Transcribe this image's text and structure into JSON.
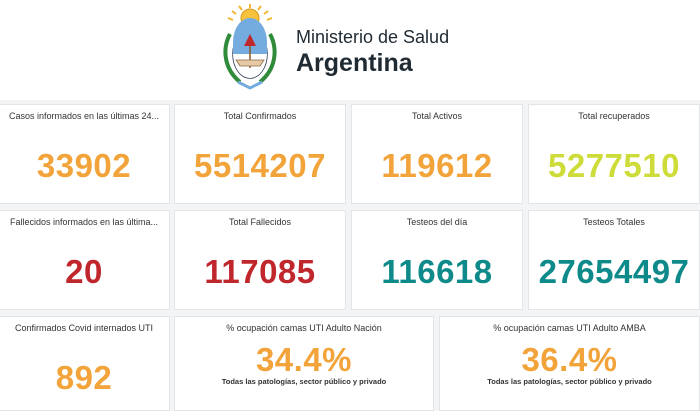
{
  "header": {
    "line1": "Ministerio de Salud",
    "line2": "Argentina",
    "logo_icon": "argentina-coat-of-arms-icon"
  },
  "colors": {
    "orange": "#f2a33a",
    "lime": "#cddc39",
    "red": "#c0272d",
    "teal": "#0f8a8a"
  },
  "cards": {
    "casos_24": {
      "title": "Casos informados en las últimas 24...",
      "value": "33902"
    },
    "total_confirmados": {
      "title": "Total Confirmados",
      "value": "5514207"
    },
    "total_activos": {
      "title": "Total Activos",
      "value": "119612"
    },
    "total_recuperados": {
      "title": "Total recuperados",
      "value": "5277510"
    },
    "fallecidos_24": {
      "title": "Fallecidos informados en las última...",
      "value": "20"
    },
    "total_fallecidos": {
      "title": "Total Fallecidos",
      "value": "117085"
    },
    "testeos_dia": {
      "title": "Testeos del día",
      "value": "116618"
    },
    "testeos_totales": {
      "title": "Testeos Totales",
      "value": "27654497"
    },
    "internados_uti": {
      "title": "Confirmados Covid internados UTI",
      "value": "892"
    },
    "uti_nacion": {
      "title": "% ocupación camas UTI Adulto Nación",
      "value": "34.4%",
      "subtitle": "Todas las patologías, sector público y privado"
    },
    "uti_amba": {
      "title": "% ocupación camas UTI Adulto AMBA",
      "value": "36.4%",
      "subtitle": "Todas las patologías, sector público y privado"
    }
  }
}
